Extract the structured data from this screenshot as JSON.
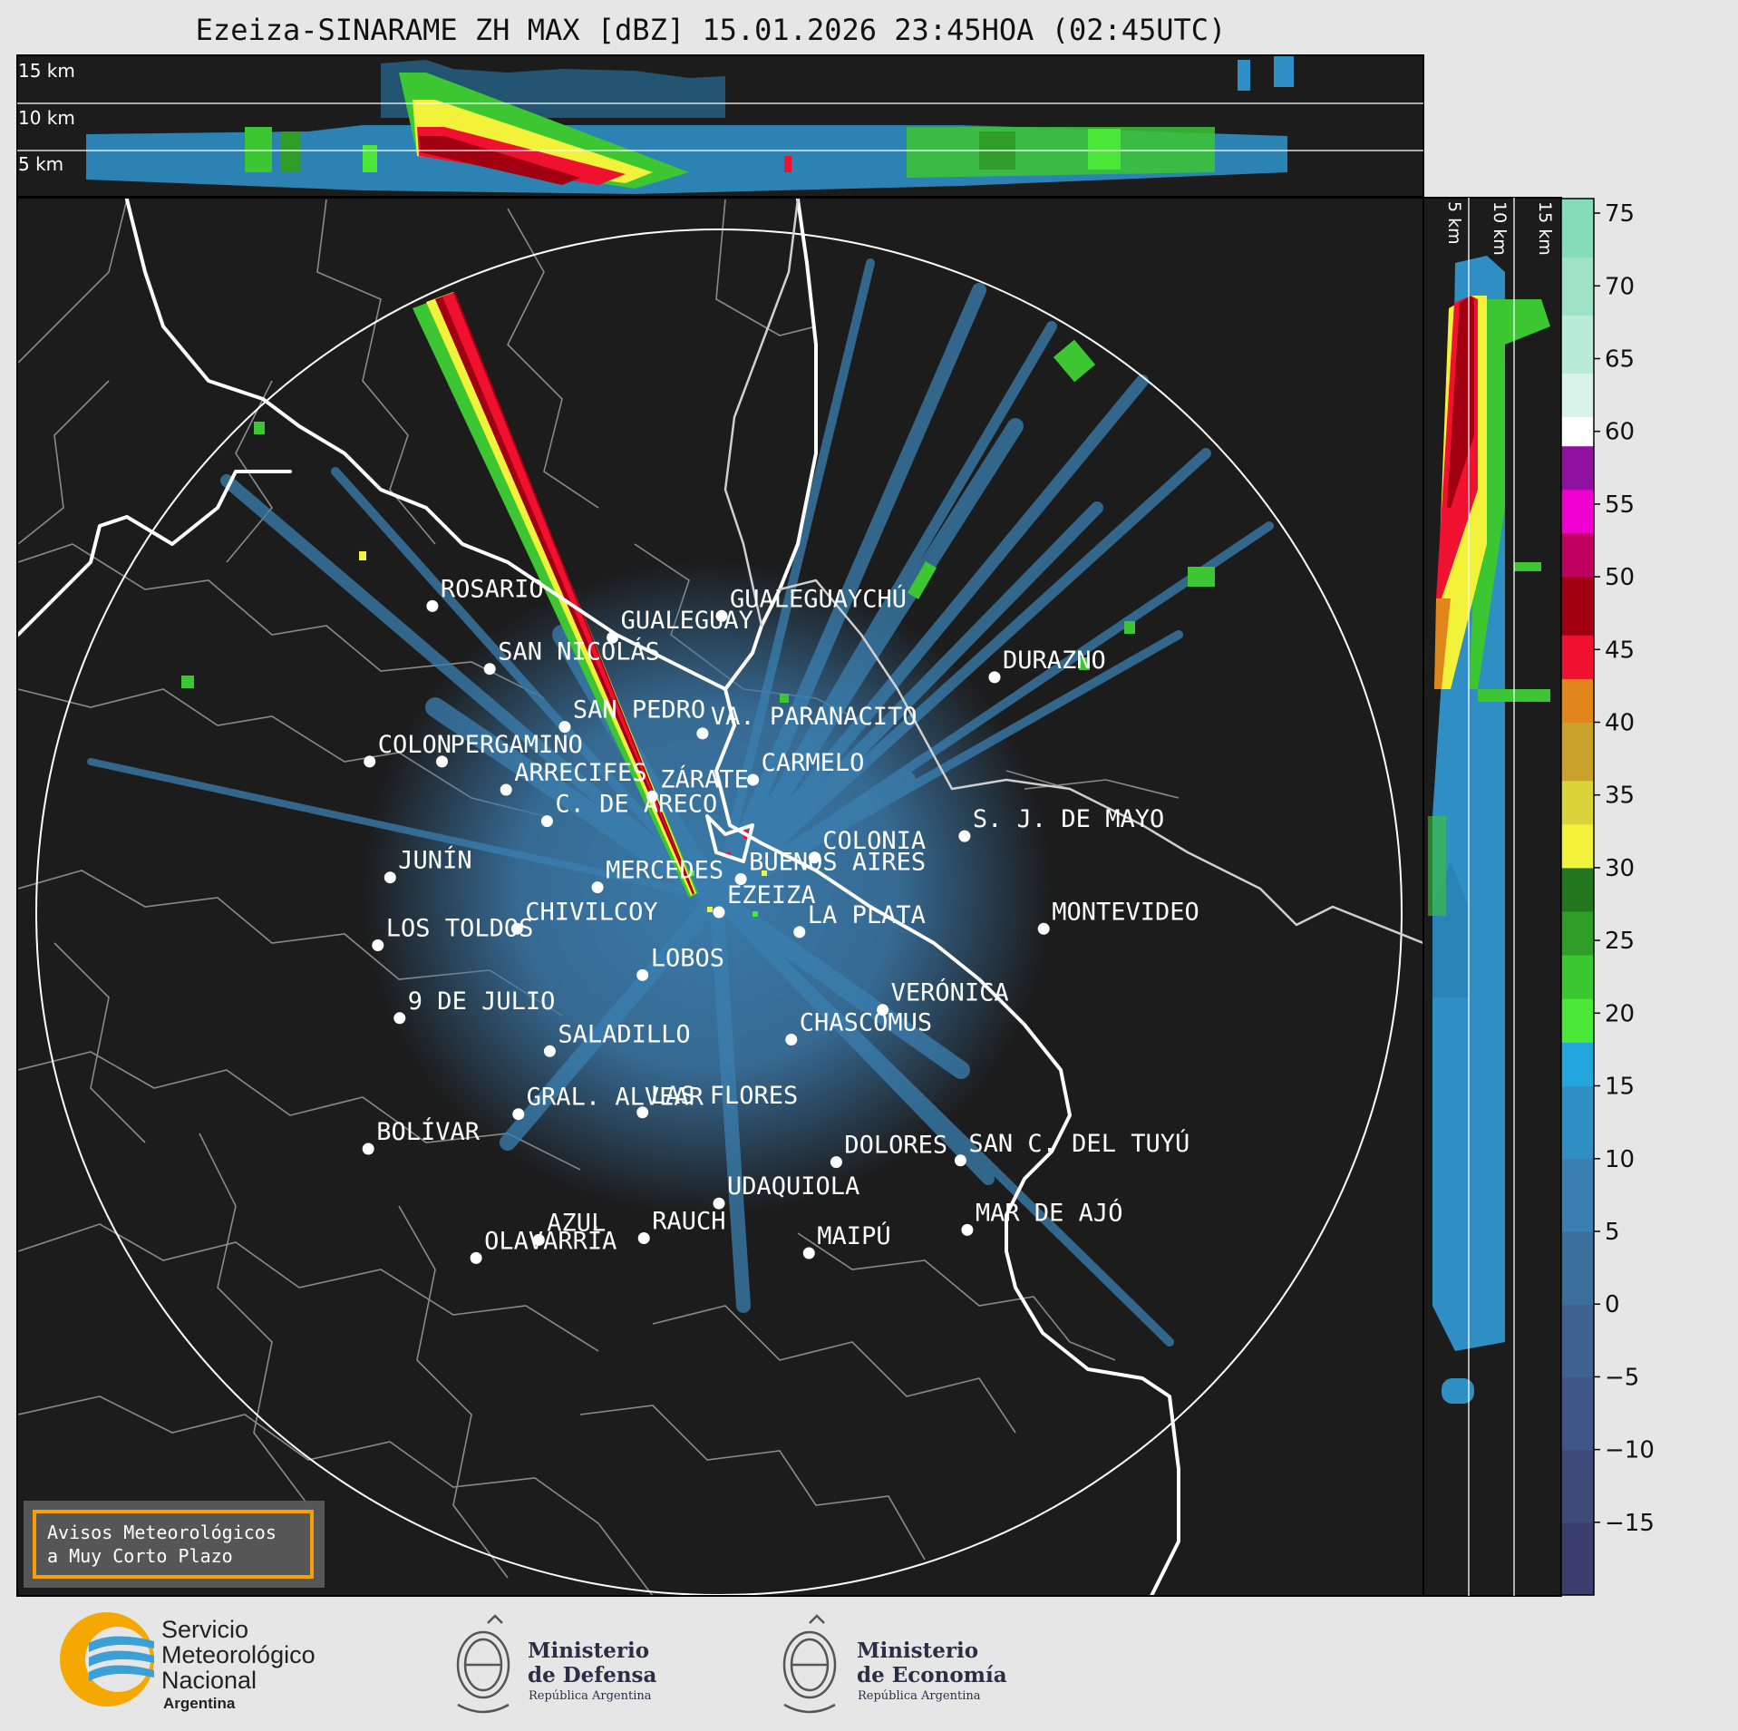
{
  "title": "Ezeiza-SINARAME ZH MAX [dBZ] 15.01.2026 23:45HOA (02:45UTC)",
  "top_panel": {
    "height_labels": [
      "15 km",
      "10 km",
      "5 km"
    ]
  },
  "side_panel": {
    "height_labels": [
      "5 km",
      "10 km",
      "15 km"
    ]
  },
  "colorbar": {
    "unit": "dBZ",
    "ticks": [
      "75",
      "70",
      "65",
      "60",
      "55",
      "50",
      "45",
      "40",
      "35",
      "30",
      "25",
      "20",
      "15",
      "10",
      "5",
      "0",
      "−5",
      "−10",
      "−15"
    ],
    "range": [
      -20,
      76
    ],
    "stops": [
      {
        "from": -20,
        "to": -15,
        "color": "#3b3f6e"
      },
      {
        "from": -15,
        "to": -10,
        "color": "#3e4a7a"
      },
      {
        "from": -10,
        "to": -5,
        "color": "#3f5686"
      },
      {
        "from": -5,
        "to": 0,
        "color": "#3f6291"
      },
      {
        "from": 0,
        "to": 5,
        "color": "#3c6e9d"
      },
      {
        "from": 5,
        "to": 10,
        "color": "#3a7fb0"
      },
      {
        "from": 10,
        "to": 15,
        "color": "#2f8fc4"
      },
      {
        "from": 15,
        "to": 18,
        "color": "#22a6dd"
      },
      {
        "from": 18,
        "to": 21,
        "color": "#4be83a"
      },
      {
        "from": 21,
        "to": 24,
        "color": "#3cc631"
      },
      {
        "from": 24,
        "to": 27,
        "color": "#2e9e28"
      },
      {
        "from": 27,
        "to": 30,
        "color": "#22761e"
      },
      {
        "from": 30,
        "to": 33,
        "color": "#f2f23a"
      },
      {
        "from": 33,
        "to": 36,
        "color": "#d8d43a"
      },
      {
        "from": 36,
        "to": 40,
        "color": "#c8a22a"
      },
      {
        "from": 40,
        "to": 43,
        "color": "#e0861a"
      },
      {
        "from": 43,
        "to": 46,
        "color": "#f01030"
      },
      {
        "from": 46,
        "to": 50,
        "color": "#a00010"
      },
      {
        "from": 50,
        "to": 53,
        "color": "#c00060"
      },
      {
        "from": 53,
        "to": 56,
        "color": "#f000d0"
      },
      {
        "from": 56,
        "to": 59,
        "color": "#9010a0"
      },
      {
        "from": 59,
        "to": 61,
        "color": "#ffffff"
      },
      {
        "from": 61,
        "to": 64,
        "color": "#d8f4ea"
      },
      {
        "from": 64,
        "to": 68,
        "color": "#b8ecd6"
      },
      {
        "from": 68,
        "to": 72,
        "color": "#9ee2c6"
      },
      {
        "from": 72,
        "to": 76,
        "color": "#86dcb8"
      }
    ]
  },
  "cities": [
    {
      "name": "ROSARIO",
      "lon": -60.64,
      "lat": -32.95
    },
    {
      "name": "GUALEGUAYCHÚ",
      "lon": -58.52,
      "lat": -33.01
    },
    {
      "name": "GUALEGUAY",
      "lon": -59.32,
      "lat": -33.14
    },
    {
      "name": "SAN NICOLÁS",
      "lon": -60.22,
      "lat": -33.33
    },
    {
      "name": "DURAZNO",
      "lon": -56.52,
      "lat": -33.38
    },
    {
      "name": "SAN PEDRO",
      "lon": -59.67,
      "lat": -33.68
    },
    {
      "name": "VA. PARANACITO",
      "lon": -58.66,
      "lat": -33.72
    },
    {
      "name": "COLON",
      "lon": -61.1,
      "lat": -33.89
    },
    {
      "name": "PERGAMINO",
      "lon": -60.57,
      "lat": -33.89
    },
    {
      "name": "CARMELO",
      "lon": -58.29,
      "lat": -34.0
    },
    {
      "name": "ARRECIFES",
      "lon": -60.1,
      "lat": -34.06
    },
    {
      "name": "ZÁRATE",
      "lon": -59.03,
      "lat": -34.1
    },
    {
      "name": "S. J. DE MAYO",
      "lon": -56.74,
      "lat": -34.34
    },
    {
      "name": "C. DE ARECO",
      "lon": -59.8,
      "lat": -34.25
    },
    {
      "name": "COLONIA",
      "lon": -57.84,
      "lat": -34.47
    },
    {
      "name": "BUENOS AIRES",
      "lon": -58.38,
      "lat": -34.6
    },
    {
      "name": "JUNÍN",
      "lon": -60.95,
      "lat": -34.59
    },
    {
      "name": "MERCEDES",
      "lon": -59.43,
      "lat": -34.65
    },
    {
      "name": "EZEIZA",
      "lon": -58.54,
      "lat": -34.8
    },
    {
      "name": "MONTEVIDEO",
      "lon": -56.16,
      "lat": -34.9
    },
    {
      "name": "CHIVILCOY",
      "lon": -60.02,
      "lat": -34.9
    },
    {
      "name": "LA PLATA",
      "lon": -57.95,
      "lat": -34.92
    },
    {
      "name": "LOS TOLDOS",
      "lon": -61.04,
      "lat": -35.0
    },
    {
      "name": "LOBOS",
      "lon": -59.1,
      "lat": -35.18
    },
    {
      "name": "VERÓNICA",
      "lon": -57.34,
      "lat": -35.39
    },
    {
      "name": "9 DE JULIO",
      "lon": -60.88,
      "lat": -35.44
    },
    {
      "name": "CHASCOMUS",
      "lon": -58.01,
      "lat": -35.57
    },
    {
      "name": "SALADILLO",
      "lon": -59.78,
      "lat": -35.64
    },
    {
      "name": "GRAL. ALVEAR",
      "lon": -60.01,
      "lat": -36.02
    },
    {
      "name": "LAS FLORES",
      "lon": -59.1,
      "lat": -36.01
    },
    {
      "name": "BOLÍVAR",
      "lon": -61.11,
      "lat": -36.23
    },
    {
      "name": "DOLORES",
      "lon": -57.68,
      "lat": -36.31
    },
    {
      "name": "SAN C. DEL TUYÚ",
      "lon": -56.77,
      "lat": -36.3
    },
    {
      "name": "UDAQUIOLA",
      "lon": -58.54,
      "lat": -36.56
    },
    {
      "name": "MAR DE AJÓ",
      "lon": -56.72,
      "lat": -36.72
    },
    {
      "name": "AZUL",
      "lon": -59.86,
      "lat": -36.78
    },
    {
      "name": "RAUCH",
      "lon": -59.09,
      "lat": -36.77
    },
    {
      "name": "OLAVARRÍA",
      "lon": -60.32,
      "lat": -36.89
    },
    {
      "name": "MAIPÚ",
      "lon": -57.88,
      "lat": -36.86
    }
  ],
  "warning_box": {
    "line1": "Avisos Meteorológicos",
    "line2": "a Muy Corto Plazo"
  },
  "logos": {
    "smn": {
      "line1": "Servicio",
      "line2": "Meteorológico",
      "line3": "Nacional",
      "line4": "Argentina"
    },
    "defensa": {
      "line1": "Ministerio",
      "line2": "de Defensa",
      "line3": "República Argentina"
    },
    "economia": {
      "line1": "Ministerio",
      "line2": "de Economía",
      "line3": "República Argentina"
    }
  },
  "colors": {
    "map_background": "#1c1c1c",
    "coastline": "#ffffff",
    "borders": "#8a8a8a",
    "range_ring": "#ffffff",
    "warning_border": "#f5a000"
  }
}
